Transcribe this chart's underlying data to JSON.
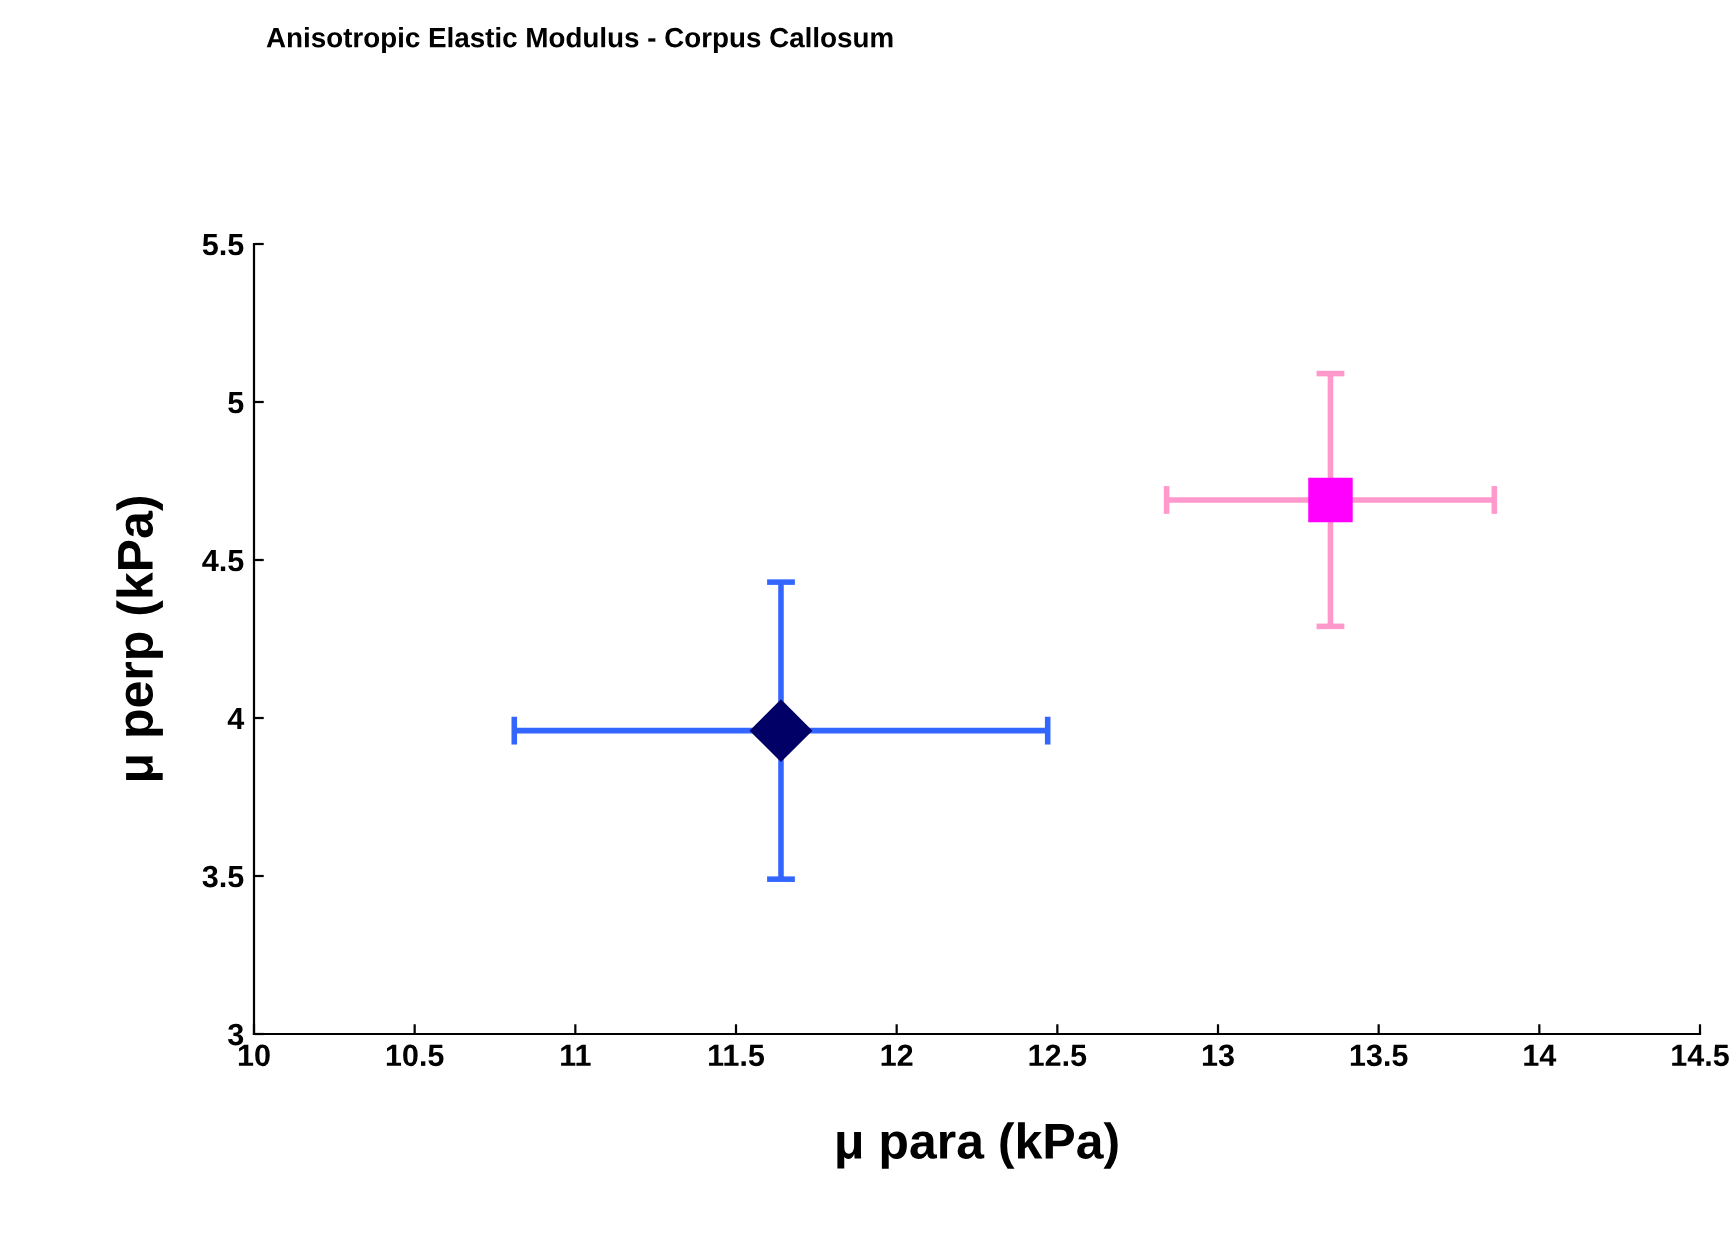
{
  "chart_data": {
    "type": "scatter",
    "title": "Anisotropic Elastic Modulus - Corpus Callosum",
    "xlabel": "μ para (kPa)",
    "ylabel": "μ perp (kPa)",
    "series": [
      {
        "color": "#000066",
        "marker": "diamond",
        "x": [
          11.64
        ],
        "values": [
          3.96
        ],
        "errors": [
          0.47
        ],
        "xerrors": [
          0.83
        ]
      },
      {
        "color": "#ff00ff",
        "marker": "square",
        "x": [
          13.35
        ],
        "values": [
          4.69
        ],
        "errors": [
          0.4
        ],
        "xerrors": [
          0.51
        ]
      }
    ],
    "xlim": [
      10,
      14.5
    ],
    "xticks": [
      10,
      10.5,
      11,
      11.5,
      12,
      12.5,
      13,
      13.5,
      14,
      14.5
    ],
    "ylim": [
      3,
      5.5
    ],
    "yticks": [
      3,
      3.5,
      4,
      4.5,
      5,
      5.5
    ],
    "grid": false,
    "legend": false
  }
}
